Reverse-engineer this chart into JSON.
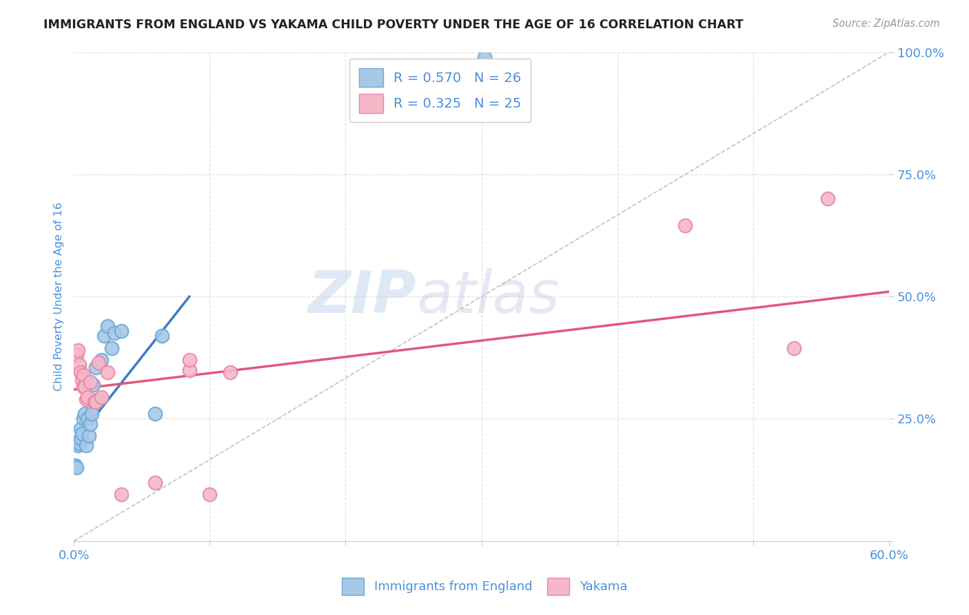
{
  "title": "IMMIGRANTS FROM ENGLAND VS YAKAMA CHILD POVERTY UNDER THE AGE OF 16 CORRELATION CHART",
  "source": "Source: ZipAtlas.com",
  "ylabel": "Child Poverty Under the Age of 16",
  "xlim": [
    0.0,
    0.6
  ],
  "ylim": [
    0.0,
    1.0
  ],
  "xticks": [
    0.0,
    0.1,
    0.2,
    0.3,
    0.4,
    0.5,
    0.6
  ],
  "xticklabels": [
    "0.0%",
    "",
    "",
    "",
    "",
    "",
    "60.0%"
  ],
  "yticks": [
    0.0,
    0.25,
    0.5,
    0.75,
    1.0
  ],
  "yticklabels": [
    "",
    "25.0%",
    "50.0%",
    "75.0%",
    "100.0%"
  ],
  "legend1_label": "R = 0.570   N = 26",
  "legend2_label": "R = 0.325   N = 25",
  "blue_color": "#a8c8e8",
  "pink_color": "#f5b8c8",
  "blue_edge": "#6aaad8",
  "pink_edge": "#e888a8",
  "blue_line_color": "#3a7cc8",
  "pink_line_color": "#e05878",
  "watermark_zip": "ZIP",
  "watermark_atlas": "atlas",
  "title_color": "#222222",
  "axis_label_color": "#4a90d9",
  "tick_label_color": "#4a90d9",
  "legend_text_color": "#4a90d9",
  "grid_color": "#e0e0e0",
  "background_color": "#ffffff",
  "blue_x": [
    0.001,
    0.002,
    0.003,
    0.004,
    0.005,
    0.005,
    0.006,
    0.007,
    0.008,
    0.009,
    0.01,
    0.011,
    0.012,
    0.013,
    0.014,
    0.016,
    0.018,
    0.02,
    0.022,
    0.025,
    0.028,
    0.03,
    0.035,
    0.06,
    0.065,
    0.302
  ],
  "blue_y": [
    0.155,
    0.15,
    0.195,
    0.2,
    0.21,
    0.23,
    0.22,
    0.25,
    0.26,
    0.195,
    0.25,
    0.215,
    0.24,
    0.26,
    0.32,
    0.355,
    0.29,
    0.37,
    0.42,
    0.44,
    0.395,
    0.425,
    0.43,
    0.26,
    0.42,
    0.99
  ],
  "pink_x": [
    0.002,
    0.003,
    0.004,
    0.005,
    0.006,
    0.007,
    0.007,
    0.008,
    0.009,
    0.01,
    0.012,
    0.015,
    0.016,
    0.018,
    0.02,
    0.025,
    0.035,
    0.06,
    0.085,
    0.085,
    0.1,
    0.115,
    0.45,
    0.53,
    0.555
  ],
  "pink_y": [
    0.38,
    0.39,
    0.36,
    0.345,
    0.33,
    0.315,
    0.34,
    0.315,
    0.29,
    0.295,
    0.325,
    0.285,
    0.285,
    0.365,
    0.295,
    0.345,
    0.095,
    0.12,
    0.35,
    0.37,
    0.095,
    0.345,
    0.645,
    0.395,
    0.7
  ],
  "blue_line_x": [
    0.0,
    0.085
  ],
  "blue_line_y": [
    0.2,
    0.5
  ],
  "pink_line_x": [
    0.0,
    0.6
  ],
  "pink_line_y": [
    0.31,
    0.51
  ]
}
